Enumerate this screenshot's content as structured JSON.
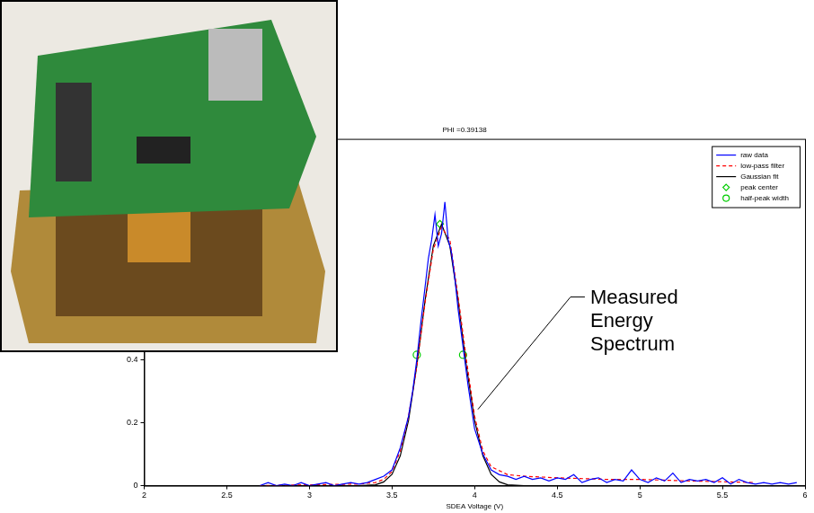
{
  "chart_data": {
    "type": "line",
    "title": "PHI =0.39138",
    "x_label": "SDEA Voltage (V)",
    "xlim": [
      2,
      6
    ],
    "xticks": [
      2,
      2.5,
      3,
      3.5,
      4,
      4.5,
      5,
      5.5,
      6
    ],
    "ylim": [
      0,
      1.1
    ],
    "yticks": [
      0,
      0.2,
      0.4
    ],
    "grid": false,
    "legend": "upper right",
    "annotations": [
      {
        "text": "Measured Energy Spectrum"
      }
    ],
    "series": [
      {
        "name": "raw data",
        "color": "#0000ff",
        "line_style": "solid",
        "marker": "none",
        "x": [
          2.7,
          2.75,
          2.8,
          2.85,
          2.9,
          2.95,
          3.0,
          3.05,
          3.1,
          3.15,
          3.2,
          3.25,
          3.3,
          3.35,
          3.4,
          3.45,
          3.5,
          3.55,
          3.6,
          3.625,
          3.65,
          3.675,
          3.7,
          3.72,
          3.74,
          3.76,
          3.78,
          3.8,
          3.82,
          3.84,
          3.86,
          3.88,
          3.9,
          3.92,
          3.94,
          3.96,
          3.98,
          4.0,
          4.05,
          4.1,
          4.15,
          4.2,
          4.25,
          4.3,
          4.35,
          4.4,
          4.45,
          4.5,
          4.55,
          4.6,
          4.65,
          4.7,
          4.75,
          4.8,
          4.85,
          4.9,
          4.95,
          5.0,
          5.05,
          5.1,
          5.15,
          5.2,
          5.25,
          5.3,
          5.35,
          5.4,
          5.45,
          5.5,
          5.55,
          5.6,
          5.65,
          5.7,
          5.75,
          5.8,
          5.85,
          5.9,
          5.95
        ],
        "values": [
          0,
          0.01,
          0,
          0.005,
          0,
          0.01,
          0,
          0.005,
          0.01,
          0,
          0.005,
          0.01,
          0.005,
          0.01,
          0.02,
          0.03,
          0.05,
          0.12,
          0.22,
          0.3,
          0.4,
          0.52,
          0.63,
          0.72,
          0.78,
          0.86,
          0.76,
          0.8,
          0.9,
          0.78,
          0.74,
          0.66,
          0.56,
          0.48,
          0.4,
          0.32,
          0.25,
          0.18,
          0.1,
          0.05,
          0.035,
          0.03,
          0.02,
          0.03,
          0.02,
          0.025,
          0.015,
          0.025,
          0.02,
          0.035,
          0.01,
          0.02,
          0.025,
          0.01,
          0.02,
          0.015,
          0.05,
          0.02,
          0.01,
          0.025,
          0.015,
          0.04,
          0.01,
          0.02,
          0.015,
          0.02,
          0.01,
          0.025,
          0.005,
          0.02,
          0.01,
          0.005,
          0.01,
          0.005,
          0.01,
          0.005,
          0.01
        ]
      },
      {
        "name": "low-pass filter",
        "color": "#ff0000",
        "line_style": "dashed",
        "marker": "none",
        "x": [
          2.7,
          3.0,
          3.3,
          3.4,
          3.45,
          3.5,
          3.55,
          3.6,
          3.65,
          3.7,
          3.75,
          3.8,
          3.85,
          3.9,
          3.95,
          4.0,
          4.05,
          4.1,
          4.2,
          4.3,
          4.5,
          4.8,
          5.0,
          5.3,
          5.7
        ],
        "values": [
          0,
          0.003,
          0.005,
          0.01,
          0.02,
          0.045,
          0.11,
          0.22,
          0.38,
          0.58,
          0.75,
          0.82,
          0.78,
          0.6,
          0.4,
          0.22,
          0.11,
          0.06,
          0.035,
          0.03,
          0.025,
          0.02,
          0.02,
          0.015,
          0.01
        ]
      },
      {
        "name": "Gaussian fit",
        "color": "#000000",
        "line_style": "solid",
        "marker": "none",
        "x": [
          2.7,
          3.3,
          3.4,
          3.45,
          3.5,
          3.55,
          3.6,
          3.65,
          3.7,
          3.75,
          3.8,
          3.85,
          3.9,
          3.95,
          4.0,
          4.05,
          4.1,
          4.15,
          4.2,
          4.3,
          5.7
        ],
        "values": [
          0,
          0,
          0.003,
          0.012,
          0.036,
          0.095,
          0.207,
          0.38,
          0.587,
          0.761,
          0.83,
          0.761,
          0.587,
          0.38,
          0.207,
          0.095,
          0.036,
          0.012,
          0.003,
          0,
          0
        ]
      },
      {
        "name": "peak center",
        "color": "#00cc00",
        "line_style": "none",
        "marker": "diamond",
        "x": [
          3.79
        ],
        "values": [
          0.83
        ]
      },
      {
        "name": "half-peak width",
        "color": "#00cc00",
        "line_style": "none",
        "marker": "circle",
        "x": [
          3.65,
          3.93
        ],
        "values": [
          0.415,
          0.415
        ]
      }
    ]
  }
}
